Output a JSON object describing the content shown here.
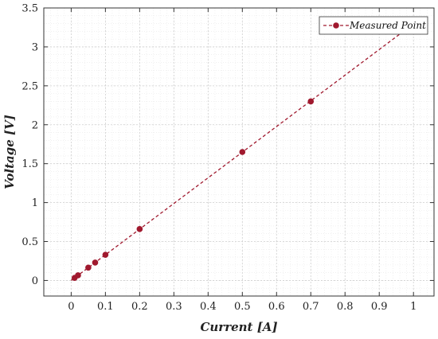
{
  "chart_data": {
    "type": "line",
    "xlabel": "Current [A]",
    "ylabel": "Voltage [V]",
    "xlim": [
      -0.08,
      1.06
    ],
    "ylim": [
      -0.2,
      3.5
    ],
    "xticks": [
      0,
      0.1,
      0.2,
      0.3,
      0.4,
      0.5,
      0.6,
      0.7,
      0.8,
      0.9,
      1
    ],
    "xtick_labels": [
      "0",
      "0.1",
      "0.2",
      "0.3",
      "0.4",
      "0.5",
      "0.6",
      "0.7",
      "0.8",
      "0.9",
      "1"
    ],
    "yticks": [
      0,
      0.5,
      1,
      1.5,
      2,
      2.5,
      3,
      3.5
    ],
    "ytick_labels": [
      "0",
      "0.5",
      "1",
      "1.5",
      "2",
      "2.5",
      "3",
      "3.5"
    ],
    "grid": true,
    "minor_grid": true,
    "legend_position": "top-right",
    "series": [
      {
        "name": "Measured Point",
        "color": "#a0192e",
        "line_style": "dashed",
        "marker": "circle",
        "x": [
          0.01,
          0.02,
          0.05,
          0.07,
          0.1,
          0.2,
          0.5,
          0.7
        ],
        "y": [
          0.033,
          0.066,
          0.165,
          0.23,
          0.33,
          0.66,
          1.65,
          2.3
        ],
        "fit_line": {
          "x": [
            0.0,
            0.98
          ],
          "y": [
            0.0,
            3.23
          ]
        }
      }
    ]
  }
}
